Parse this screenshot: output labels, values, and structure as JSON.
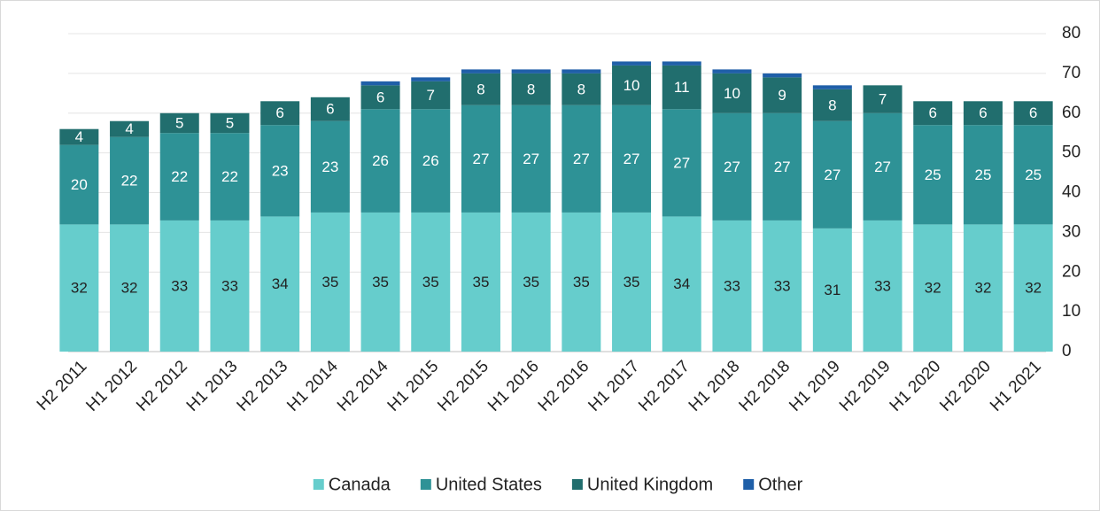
{
  "chart_data": {
    "type": "stacked_bar",
    "categories": [
      "H2 2011",
      "H1 2012",
      "H2 2012",
      "H1 2013",
      "H2 2013",
      "H1 2014",
      "H2 2014",
      "H1 2015",
      "H2 2015",
      "H1 2016",
      "H2 2016",
      "H1 2017",
      "H2 2017",
      "H1 2018",
      "H2 2018",
      "H1 2019",
      "H2 2019",
      "H1 2020",
      "H2 2020",
      "H1 2021"
    ],
    "series": [
      {
        "name": "Canada",
        "color": "#66cdcc",
        "values": [
          32,
          32,
          33,
          33,
          34,
          35,
          35,
          35,
          35,
          35,
          35,
          35,
          34,
          33,
          33,
          31,
          33,
          32,
          32,
          32
        ]
      },
      {
        "name": "United States",
        "color": "#2e9296",
        "values": [
          20,
          22,
          22,
          22,
          23,
          23,
          26,
          26,
          27,
          27,
          27,
          27,
          27,
          27,
          27,
          27,
          27,
          25,
          25,
          25
        ]
      },
      {
        "name": "United Kingdom",
        "color": "#216e6e",
        "values": [
          4,
          4,
          5,
          5,
          6,
          6,
          6,
          7,
          8,
          8,
          8,
          10,
          11,
          10,
          9,
          8,
          7,
          6,
          6,
          6
        ]
      },
      {
        "name": "Other",
        "color": "#1f5fa8",
        "values": [
          0,
          0,
          0,
          0,
          0,
          0,
          1,
          1,
          1,
          1,
          1,
          1,
          1,
          1,
          1,
          1,
          0,
          0,
          0,
          0
        ]
      }
    ],
    "labeled_series": [
      0,
      1,
      2
    ],
    "ylim": [
      0,
      80
    ],
    "yticks": [
      0,
      10,
      20,
      30,
      40,
      50,
      60,
      70,
      80
    ],
    "grid": true,
    "y_axis_side": "right",
    "legend": "bottom"
  }
}
